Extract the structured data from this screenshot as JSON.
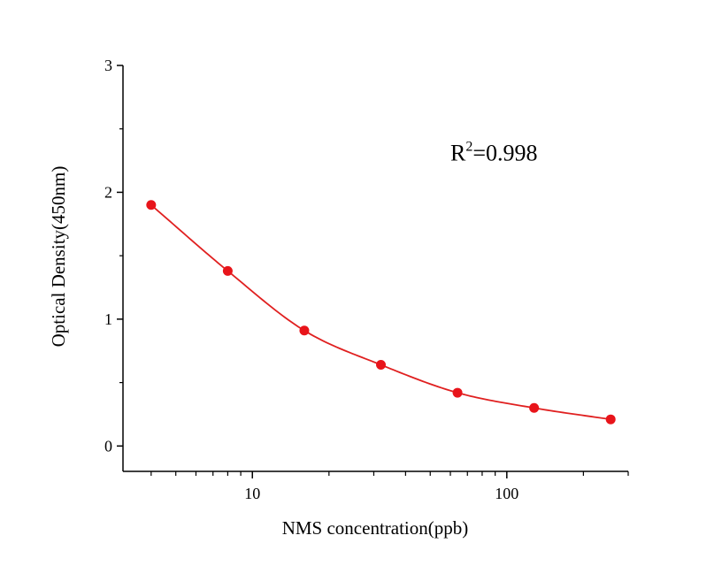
{
  "chart_data": {
    "type": "scatter",
    "title": "",
    "xlabel": "NMS concentration(ppb)",
    "ylabel": "Optical Density(450nm)",
    "xscale": "log",
    "xlim": [
      3.1,
      300
    ],
    "ylim": [
      -0.2,
      3
    ],
    "xticks": [
      {
        "value": 10,
        "label": "10"
      },
      {
        "value": 100,
        "label": "100"
      }
    ],
    "yticks": [
      {
        "value": 0,
        "label": "0"
      },
      {
        "value": 1,
        "label": "1"
      },
      {
        "value": 2,
        "label": "2"
      },
      {
        "value": 3,
        "label": "3"
      }
    ],
    "grid": false,
    "legend": false,
    "annotation": {
      "base": "R",
      "superscript": "2",
      "rest": "=0.998",
      "x": 60,
      "y": 2.25
    },
    "series": [
      {
        "values": [
          {
            "x": 4,
            "y": 1.9
          },
          {
            "x": 8,
            "y": 1.38
          },
          {
            "x": 16,
            "y": 0.91
          },
          {
            "x": 32,
            "y": 0.64
          },
          {
            "x": 64,
            "y": 0.42
          },
          {
            "x": 128,
            "y": 0.3
          },
          {
            "x": 256,
            "y": 0.21
          }
        ],
        "color": "#e8141a",
        "fit": "4PL",
        "fit_color": "#e02020"
      }
    ]
  }
}
